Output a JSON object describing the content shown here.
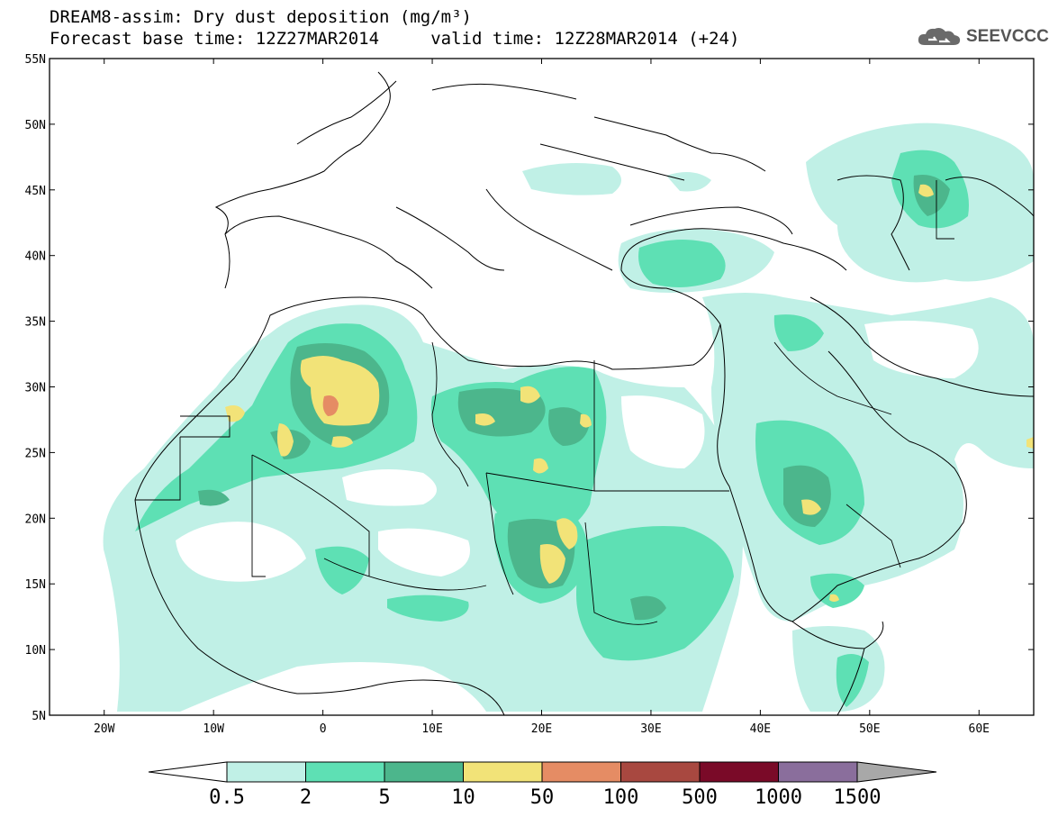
{
  "header": {
    "title_line1": "DREAM8-assim: Dry dust deposition (mg/m³)",
    "title_line2": "Forecast base time: 12Z27MAR2014     valid time: 12Z28MAR2014 (+24)",
    "logo_text": "SEEVCCC",
    "logo_icon": "cloud-icon"
  },
  "map": {
    "projection": "lat-lon",
    "lon_range": [
      -25,
      65
    ],
    "lat_range": [
      5,
      55
    ],
    "lat_ticks": [
      "55N",
      "50N",
      "45N",
      "40N",
      "35N",
      "30N",
      "25N",
      "20N",
      "15N",
      "10N",
      "5N"
    ],
    "lon_ticks": [
      "20W",
      "10W",
      "0",
      "10E",
      "20E",
      "30E",
      "40E",
      "50E",
      "60E"
    ]
  },
  "colorbar": {
    "labels": [
      "0.5",
      "2",
      "5",
      "10",
      "50",
      "100",
      "500",
      "1000",
      "1500"
    ],
    "colors": [
      "#c0f0e6",
      "#5ee0b4",
      "#4cb68c",
      "#f2e378",
      "#e58c64",
      "#a84840",
      "#7a0a28",
      "#8a6e9c"
    ],
    "under_color": "#ffffff",
    "over_color": "#a8a8a8"
  }
}
